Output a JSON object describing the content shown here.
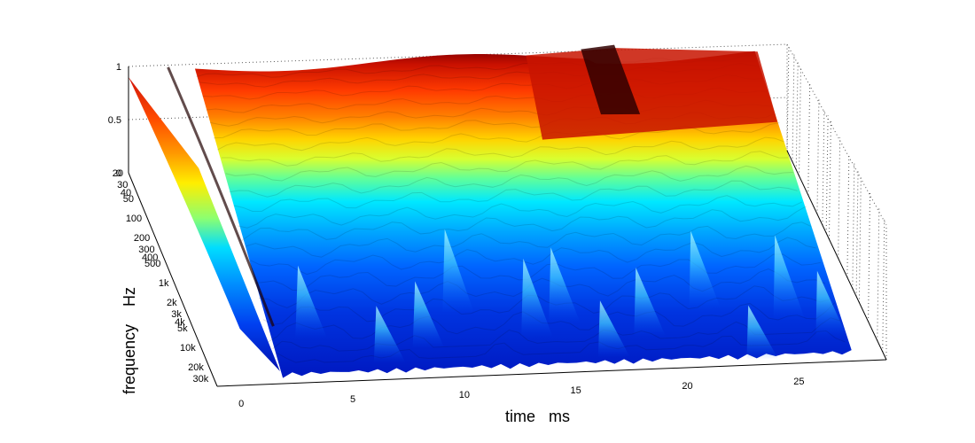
{
  "chart_data": {
    "type": "waterfall",
    "title": "",
    "zlabel": "",
    "xlabel": "time   ms",
    "ylabel": "frequency    Hz",
    "x_ticks": [
      0,
      5,
      10,
      15,
      20,
      25
    ],
    "x_tick_labels": [
      "0",
      "5",
      "10",
      "15",
      "20",
      "25"
    ],
    "y_ticks": [
      20,
      30,
      40,
      50,
      100,
      200,
      300,
      400,
      500,
      1000,
      2000,
      3000,
      4000,
      5000,
      10000,
      20000,
      30000
    ],
    "y_tick_labels": [
      "20",
      "30",
      "40",
      "50",
      "100",
      "200",
      "300",
      "400",
      "500",
      "1k",
      "2k",
      "3k",
      "4k",
      "5k",
      "10k",
      "20k",
      "30k"
    ],
    "y_scale": "log",
    "z_ticks": [
      0,
      0.5,
      1
    ],
    "z_tick_labels": [
      "0",
      "0.5",
      "1"
    ],
    "xlim": [
      -1,
      29
    ],
    "ylim": [
      20,
      40000
    ],
    "zlim": [
      0,
      1
    ],
    "colormap": "jet",
    "grid": "box (dotted)"
  }
}
